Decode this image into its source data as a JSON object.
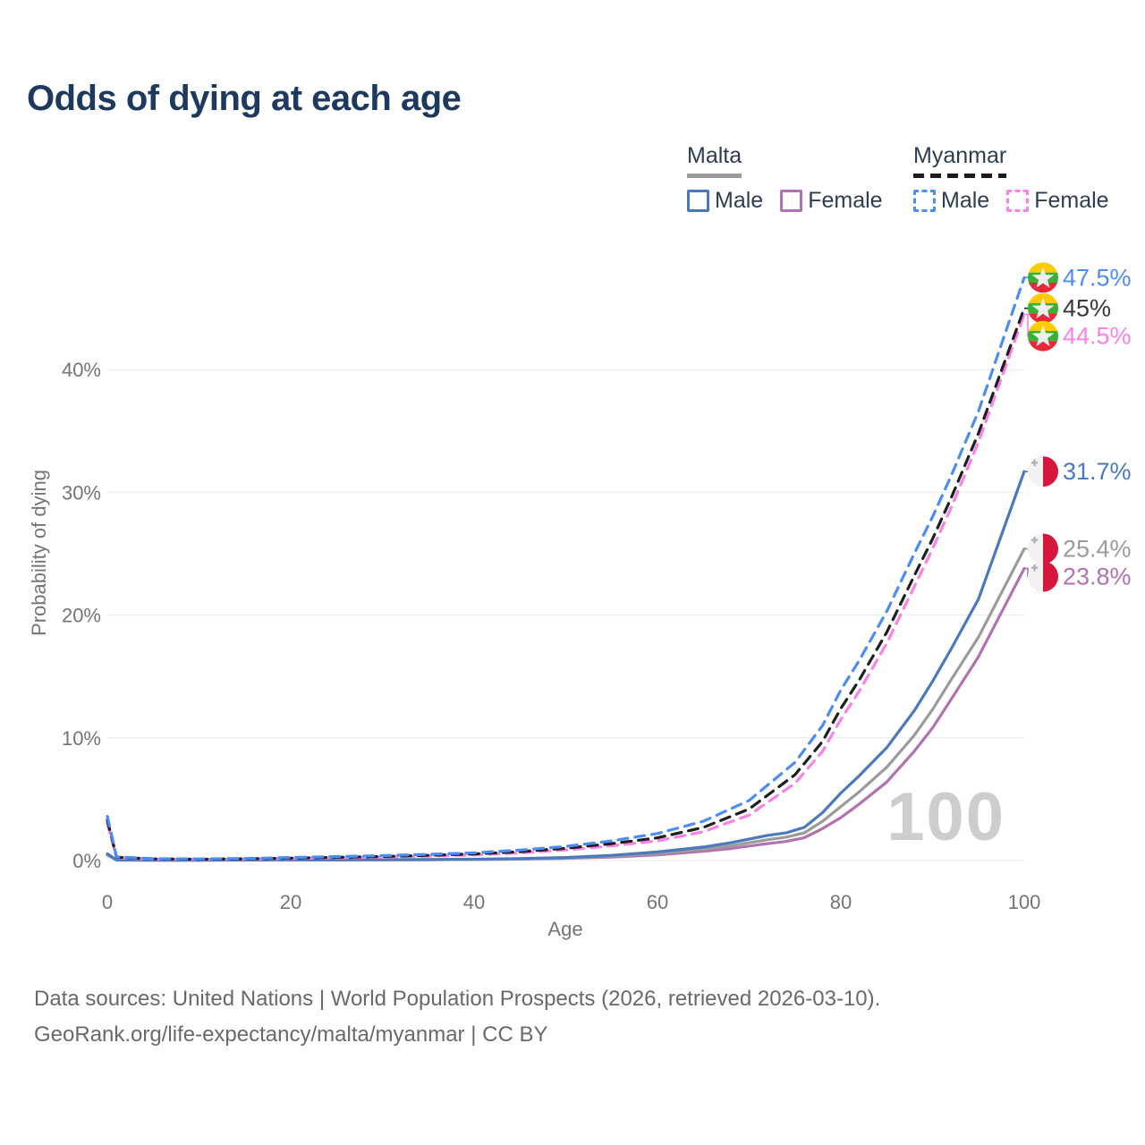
{
  "title": "Odds of dying at each age",
  "watermark": "100",
  "legend": {
    "groups": [
      {
        "label": "Malta",
        "style": "solid",
        "underline_color": "#9b9b9b",
        "items": [
          {
            "label": "Male",
            "color": "#4a79bd",
            "dashed": false
          },
          {
            "label": "Female",
            "color": "#b172b2",
            "dashed": false
          }
        ]
      },
      {
        "label": "Myanmar",
        "style": "dashed",
        "underline_color": "#1c1c1c",
        "items": [
          {
            "label": "Male",
            "color": "#4b8df5",
            "dashed": true
          },
          {
            "label": "Female",
            "color": "#fb80e8",
            "dashed": true
          }
        ]
      }
    ]
  },
  "footer": {
    "line1": "Data sources: United Nations | World Population Prospects (2026, retrieved 2026-03-10).",
    "line2": "GeoRank.org/life-expectancy/malta/myanmar | CC BY"
  },
  "chart_data": {
    "type": "line",
    "title": "Odds of dying at each age",
    "xlabel": "Age",
    "ylabel": "Probability of dying",
    "xlim": [
      0,
      100
    ],
    "ylim": [
      0,
      47.5
    ],
    "x_ticks": [
      0,
      20,
      40,
      60,
      80,
      100
    ],
    "y_ticks": [
      0,
      10,
      20,
      30,
      40
    ],
    "y_tick_suffix": "%",
    "grid": "horizontal",
    "legend_position": "top-right",
    "series": [
      {
        "id": "malta-female",
        "name": "Malta Female",
        "country": "Malta",
        "sex": "Female",
        "color": "#b172b2",
        "label_color": "#b172b2",
        "dashed": false,
        "flag": "malta",
        "end_label": "23.8%",
        "end_value": 23.8,
        "points": [
          [
            0,
            0.45
          ],
          [
            1,
            0.04
          ],
          [
            5,
            0.03
          ],
          [
            10,
            0.03
          ],
          [
            15,
            0.04
          ],
          [
            20,
            0.045
          ],
          [
            25,
            0.05
          ],
          [
            30,
            0.055
          ],
          [
            35,
            0.065
          ],
          [
            40,
            0.085
          ],
          [
            45,
            0.12
          ],
          [
            50,
            0.18
          ],
          [
            55,
            0.28
          ],
          [
            60,
            0.47
          ],
          [
            65,
            0.75
          ],
          [
            68,
            0.98
          ],
          [
            70,
            1.18
          ],
          [
            72,
            1.38
          ],
          [
            74,
            1.55
          ],
          [
            76,
            1.85
          ],
          [
            78,
            2.6
          ],
          [
            80,
            3.5
          ],
          [
            82,
            4.6
          ],
          [
            85,
            6.4
          ],
          [
            88,
            8.9
          ],
          [
            90,
            10.8
          ],
          [
            92,
            13.1
          ],
          [
            95,
            16.6
          ],
          [
            100,
            23.8
          ]
        ]
      },
      {
        "id": "malta-combined",
        "name": "Malta",
        "country": "Malta",
        "sex": "Both",
        "color": "#9b9b9b",
        "label_color": "#9b9b9b",
        "dashed": false,
        "flag": "malta",
        "end_label": "25.4%",
        "end_value": 25.4,
        "points": [
          [
            0,
            0.5
          ],
          [
            1,
            0.045
          ],
          [
            5,
            0.035
          ],
          [
            10,
            0.035
          ],
          [
            15,
            0.045
          ],
          [
            20,
            0.05
          ],
          [
            25,
            0.055
          ],
          [
            30,
            0.06
          ],
          [
            35,
            0.075
          ],
          [
            40,
            0.095
          ],
          [
            45,
            0.14
          ],
          [
            50,
            0.21
          ],
          [
            55,
            0.35
          ],
          [
            60,
            0.58
          ],
          [
            65,
            0.92
          ],
          [
            68,
            1.2
          ],
          [
            70,
            1.45
          ],
          [
            72,
            1.7
          ],
          [
            74,
            1.9
          ],
          [
            76,
            2.25
          ],
          [
            78,
            3.2
          ],
          [
            80,
            4.4
          ],
          [
            82,
            5.6
          ],
          [
            85,
            7.6
          ],
          [
            88,
            10.2
          ],
          [
            90,
            12.3
          ],
          [
            92,
            14.7
          ],
          [
            95,
            18.2
          ],
          [
            100,
            25.4
          ]
        ]
      },
      {
        "id": "malta-male",
        "name": "Malta Male",
        "country": "Malta",
        "sex": "Male",
        "color": "#4a79bd",
        "label_color": "#4a79bd",
        "dashed": false,
        "flag": "malta",
        "end_label": "31.7%",
        "end_value": 31.7,
        "points": [
          [
            0,
            0.55
          ],
          [
            1,
            0.05
          ],
          [
            5,
            0.04
          ],
          [
            10,
            0.04
          ],
          [
            15,
            0.05
          ],
          [
            20,
            0.06
          ],
          [
            25,
            0.065
          ],
          [
            30,
            0.07
          ],
          [
            35,
            0.09
          ],
          [
            40,
            0.11
          ],
          [
            45,
            0.16
          ],
          [
            50,
            0.25
          ],
          [
            55,
            0.42
          ],
          [
            60,
            0.7
          ],
          [
            65,
            1.1
          ],
          [
            68,
            1.45
          ],
          [
            70,
            1.75
          ],
          [
            72,
            2.05
          ],
          [
            74,
            2.25
          ],
          [
            76,
            2.7
          ],
          [
            78,
            3.9
          ],
          [
            80,
            5.5
          ],
          [
            82,
            6.9
          ],
          [
            85,
            9.2
          ],
          [
            88,
            12.2
          ],
          [
            90,
            14.6
          ],
          [
            92,
            17.2
          ],
          [
            95,
            21.3
          ],
          [
            100,
            31.7
          ]
        ]
      },
      {
        "id": "myanmar-female",
        "name": "Myanmar Female",
        "country": "Myanmar",
        "sex": "Female",
        "color": "#fb80e8",
        "label_color": "#fb80e8",
        "dashed": true,
        "flag": "myanmar",
        "end_label": "44.5%",
        "end_value": 44.5,
        "points": [
          [
            0,
            3.0
          ],
          [
            1,
            0.24
          ],
          [
            5,
            0.11
          ],
          [
            10,
            0.1
          ],
          [
            15,
            0.12
          ],
          [
            20,
            0.17
          ],
          [
            25,
            0.22
          ],
          [
            30,
            0.28
          ],
          [
            35,
            0.36
          ],
          [
            40,
            0.46
          ],
          [
            45,
            0.62
          ],
          [
            50,
            0.86
          ],
          [
            55,
            1.2
          ],
          [
            60,
            1.6
          ],
          [
            65,
            2.35
          ],
          [
            70,
            3.7
          ],
          [
            75,
            6.3
          ],
          [
            78,
            8.9
          ],
          [
            80,
            11.5
          ],
          [
            82,
            13.8
          ],
          [
            85,
            17.7
          ],
          [
            88,
            22.3
          ],
          [
            90,
            25.4
          ],
          [
            92,
            28.7
          ],
          [
            95,
            34.1
          ],
          [
            100,
            44.5
          ]
        ]
      },
      {
        "id": "myanmar-combined",
        "name": "Myanmar",
        "country": "Myanmar",
        "sex": "Both",
        "color": "#1f1f1f",
        "label_color": "#383838",
        "dashed": true,
        "flag": "myanmar",
        "end_label": "45%",
        "end_value": 45,
        "points": [
          [
            0,
            3.3
          ],
          [
            1,
            0.27
          ],
          [
            5,
            0.13
          ],
          [
            10,
            0.11
          ],
          [
            15,
            0.14
          ],
          [
            20,
            0.2
          ],
          [
            25,
            0.26
          ],
          [
            30,
            0.33
          ],
          [
            35,
            0.42
          ],
          [
            40,
            0.54
          ],
          [
            45,
            0.72
          ],
          [
            50,
            1.0
          ],
          [
            55,
            1.38
          ],
          [
            60,
            1.85
          ],
          [
            65,
            2.7
          ],
          [
            70,
            4.2
          ],
          [
            75,
            7.0
          ],
          [
            78,
            9.7
          ],
          [
            80,
            12.4
          ],
          [
            82,
            14.7
          ],
          [
            85,
            18.6
          ],
          [
            88,
            23.2
          ],
          [
            90,
            26.2
          ],
          [
            92,
            29.5
          ],
          [
            95,
            34.8
          ],
          [
            100,
            45.0
          ]
        ]
      },
      {
        "id": "myanmar-male",
        "name": "Myanmar Male",
        "country": "Myanmar",
        "sex": "Male",
        "color": "#4b8df5",
        "label_color": "#4b8df5",
        "dashed": true,
        "flag": "myanmar",
        "end_label": "47.5%",
        "end_value": 47.5,
        "points": [
          [
            0,
            3.6
          ],
          [
            1,
            0.3
          ],
          [
            5,
            0.15
          ],
          [
            10,
            0.13
          ],
          [
            15,
            0.17
          ],
          [
            20,
            0.25
          ],
          [
            25,
            0.32
          ],
          [
            30,
            0.4
          ],
          [
            35,
            0.5
          ],
          [
            40,
            0.63
          ],
          [
            45,
            0.85
          ],
          [
            50,
            1.15
          ],
          [
            55,
            1.6
          ],
          [
            60,
            2.2
          ],
          [
            65,
            3.2
          ],
          [
            70,
            4.9
          ],
          [
            75,
            8.0
          ],
          [
            78,
            11.0
          ],
          [
            80,
            13.9
          ],
          [
            82,
            16.3
          ],
          [
            85,
            20.3
          ],
          [
            88,
            25.0
          ],
          [
            90,
            28.0
          ],
          [
            92,
            31.3
          ],
          [
            95,
            36.6
          ],
          [
            100,
            47.5
          ]
        ]
      }
    ]
  }
}
